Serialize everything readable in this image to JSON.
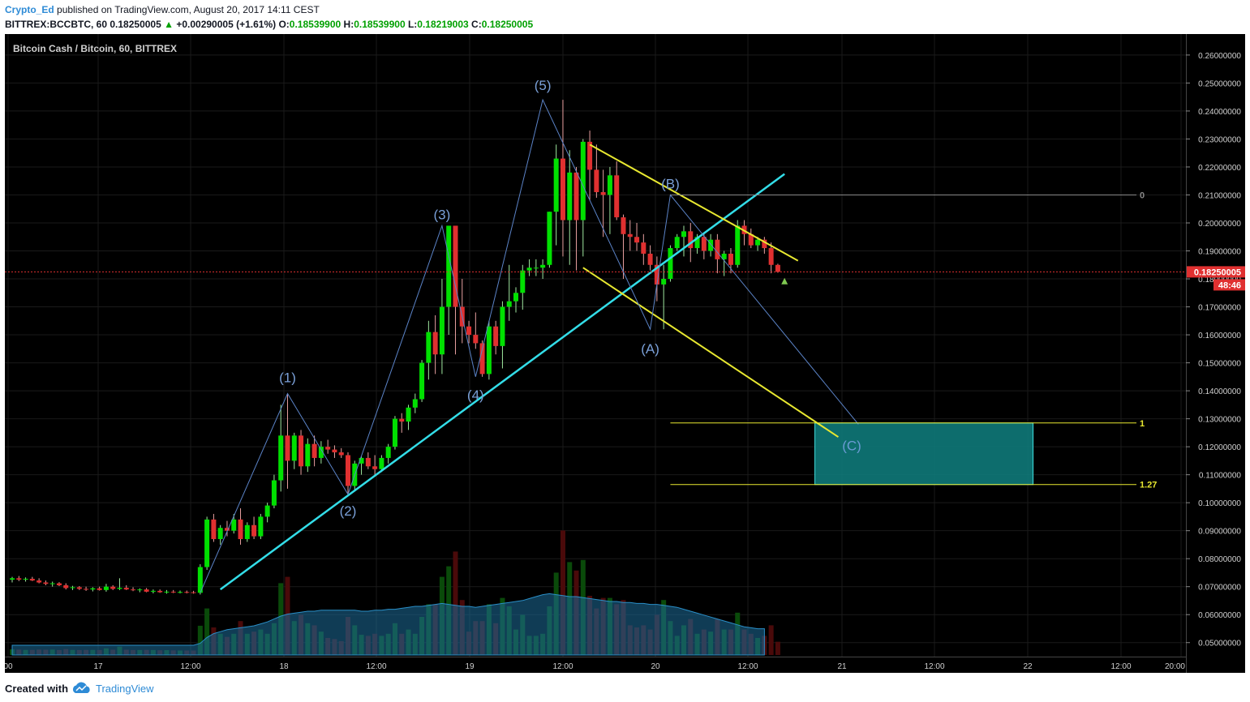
{
  "header": {
    "author": "Crypto_Ed",
    "published_text": "published on TradingView.com, August 20, 2017 14:11 CEST",
    "symbol_line": "BITTREX:BCCBTC, 60",
    "last": "0.18250005",
    "change": "+0.00290005 (+1.61%)",
    "open_label": "O:",
    "open": "0.18539900",
    "high_label": "H:",
    "high": "0.18539900",
    "low_label": "L:",
    "low": "0.18219003",
    "close_label": "C:",
    "close": "0.18250005"
  },
  "footer": {
    "created_with": "Created with",
    "brand": "TradingView"
  },
  "colors": {
    "background": "#000000",
    "grid": "#1a1a1a",
    "up": "#00e000",
    "down": "#e03030",
    "trendline": "#33dde8",
    "channel": "#e8e830",
    "wave": "#5b83c7",
    "target_box": "#0f8080"
  },
  "chart_data": {
    "type": "candlestick",
    "title": "Bitcoin Cash / Bitcoin, 60, BITTREX",
    "ylim": [
      0.045,
      0.2675
    ],
    "y_ticks": [
      "0.26000000",
      "0.25000000",
      "0.24000000",
      "0.23000000",
      "0.22000000",
      "0.21000000",
      "0.20000000",
      "0.19000000",
      "0.18000000",
      "0.17000000",
      "0.16000000",
      "0.15000000",
      "0.14000000",
      "0.13000000",
      "0.12000000",
      "0.11000000",
      "0.10000000",
      "0.09000000",
      "0.08000000",
      "0.07000000",
      "0.06000000",
      "0.05000000"
    ],
    "x_ticks": [
      "00",
      "17",
      "12:00",
      "18",
      "12:00",
      "19",
      "12:00",
      "20",
      "12:00",
      "21",
      "12:00",
      "22",
      "12:00",
      "20:00"
    ],
    "current_price": "0.18250005",
    "countdown": "48:46",
    "candles": [
      [
        0.0725,
        0.0735,
        0.0715,
        0.073
      ],
      [
        0.073,
        0.0738,
        0.072,
        0.0725
      ],
      [
        0.0725,
        0.0733,
        0.0718,
        0.0728
      ],
      [
        0.0728,
        0.0735,
        0.072,
        0.0722
      ],
      [
        0.0722,
        0.073,
        0.0712,
        0.0715
      ],
      [
        0.0715,
        0.0722,
        0.0705,
        0.071
      ],
      [
        0.071,
        0.0718,
        0.07,
        0.0712
      ],
      [
        0.0712,
        0.0716,
        0.0702,
        0.0705
      ],
      [
        0.0705,
        0.0712,
        0.069,
        0.0695
      ],
      [
        0.0695,
        0.0703,
        0.0688,
        0.0698
      ],
      [
        0.0698,
        0.0702,
        0.0688,
        0.0692
      ],
      [
        0.0692,
        0.07,
        0.0685,
        0.069
      ],
      [
        0.069,
        0.0698,
        0.0683,
        0.0694
      ],
      [
        0.0694,
        0.07,
        0.0686,
        0.0688
      ],
      [
        0.0688,
        0.071,
        0.0682,
        0.07
      ],
      [
        0.07,
        0.0705,
        0.0688,
        0.0692
      ],
      [
        0.0692,
        0.073,
        0.0688,
        0.0696
      ],
      [
        0.0696,
        0.0705,
        0.0688,
        0.069
      ],
      [
        0.069,
        0.0698,
        0.0684,
        0.0688
      ],
      [
        0.0688,
        0.0694,
        0.068,
        0.069
      ],
      [
        0.069,
        0.0695,
        0.068,
        0.0682
      ],
      [
        0.0682,
        0.069,
        0.0676,
        0.0685
      ],
      [
        0.0685,
        0.069,
        0.0678,
        0.068
      ],
      [
        0.068,
        0.0688,
        0.0675,
        0.0682
      ],
      [
        0.0682,
        0.0688,
        0.0677,
        0.068
      ],
      [
        0.068,
        0.0686,
        0.0676,
        0.0681
      ],
      [
        0.0681,
        0.0686,
        0.0676,
        0.068
      ],
      [
        0.068,
        0.0685,
        0.0675,
        0.0678
      ],
      [
        0.0678,
        0.078,
        0.0672,
        0.077
      ],
      [
        0.077,
        0.095,
        0.076,
        0.094
      ],
      [
        0.094,
        0.096,
        0.086,
        0.087
      ],
      [
        0.087,
        0.092,
        0.085,
        0.091
      ],
      [
        0.091,
        0.0935,
        0.088,
        0.09
      ],
      [
        0.09,
        0.096,
        0.089,
        0.094
      ],
      [
        0.094,
        0.098,
        0.085,
        0.087
      ],
      [
        0.087,
        0.093,
        0.086,
        0.092
      ],
      [
        0.092,
        0.095,
        0.087,
        0.088
      ],
      [
        0.088,
        0.096,
        0.087,
        0.095
      ],
      [
        0.095,
        0.1,
        0.093,
        0.099
      ],
      [
        0.099,
        0.11,
        0.098,
        0.108
      ],
      [
        0.108,
        0.135,
        0.104,
        0.124
      ],
      [
        0.124,
        0.139,
        0.105,
        0.115
      ],
      [
        0.115,
        0.125,
        0.112,
        0.124
      ],
      [
        0.124,
        0.126,
        0.11,
        0.113
      ],
      [
        0.113,
        0.123,
        0.111,
        0.121
      ],
      [
        0.121,
        0.124,
        0.113,
        0.116
      ],
      [
        0.116,
        0.122,
        0.114,
        0.12
      ],
      [
        0.12,
        0.1225,
        0.1175,
        0.119
      ],
      [
        0.119,
        0.1205,
        0.116,
        0.118
      ],
      [
        0.118,
        0.1195,
        0.116,
        0.117
      ],
      [
        0.117,
        0.118,
        0.103,
        0.106
      ],
      [
        0.106,
        0.115,
        0.104,
        0.114
      ],
      [
        0.114,
        0.1165,
        0.11,
        0.116
      ],
      [
        0.116,
        0.118,
        0.112,
        0.113
      ],
      [
        0.113,
        0.117,
        0.11,
        0.112
      ],
      [
        0.112,
        0.117,
        0.111,
        0.116
      ],
      [
        0.116,
        0.121,
        0.114,
        0.12
      ],
      [
        0.12,
        0.131,
        0.119,
        0.13
      ],
      [
        0.13,
        0.132,
        0.125,
        0.129
      ],
      [
        0.129,
        0.135,
        0.126,
        0.134
      ],
      [
        0.134,
        0.139,
        0.132,
        0.137
      ],
      [
        0.137,
        0.151,
        0.136,
        0.15
      ],
      [
        0.15,
        0.165,
        0.144,
        0.161
      ],
      [
        0.161,
        0.167,
        0.146,
        0.153
      ],
      [
        0.153,
        0.18,
        0.146,
        0.17
      ],
      [
        0.17,
        0.199,
        0.16,
        0.199
      ],
      [
        0.199,
        0.199,
        0.153,
        0.17
      ],
      [
        0.17,
        0.18,
        0.157,
        0.163
      ],
      [
        0.163,
        0.165,
        0.157,
        0.16
      ],
      [
        0.16,
        0.168,
        0.155,
        0.157
      ],
      [
        0.157,
        0.158,
        0.145,
        0.146
      ],
      [
        0.146,
        0.165,
        0.144,
        0.163
      ],
      [
        0.163,
        0.165,
        0.153,
        0.156
      ],
      [
        0.156,
        0.172,
        0.148,
        0.17
      ],
      [
        0.17,
        0.185,
        0.165,
        0.172
      ],
      [
        0.172,
        0.177,
        0.168,
        0.175
      ],
      [
        0.175,
        0.185,
        0.169,
        0.183
      ],
      [
        0.183,
        0.187,
        0.181,
        0.184
      ],
      [
        0.184,
        0.187,
        0.181,
        0.184
      ],
      [
        0.184,
        0.187,
        0.18,
        0.185
      ],
      [
        0.185,
        0.204,
        0.184,
        0.204
      ],
      [
        0.204,
        0.228,
        0.192,
        0.223
      ],
      [
        0.223,
        0.244,
        0.188,
        0.201
      ],
      [
        0.201,
        0.226,
        0.185,
        0.218
      ],
      [
        0.218,
        0.22,
        0.183,
        0.201
      ],
      [
        0.201,
        0.23,
        0.188,
        0.229
      ],
      [
        0.229,
        0.233,
        0.208,
        0.219
      ],
      [
        0.219,
        0.228,
        0.209,
        0.211
      ],
      [
        0.211,
        0.219,
        0.195,
        0.21
      ],
      [
        0.21,
        0.22,
        0.196,
        0.217
      ],
      [
        0.217,
        0.222,
        0.201,
        0.202
      ],
      [
        0.202,
        0.203,
        0.18,
        0.196
      ],
      [
        0.196,
        0.201,
        0.19,
        0.195
      ],
      [
        0.195,
        0.2,
        0.19,
        0.193
      ],
      [
        0.193,
        0.196,
        0.185,
        0.189
      ],
      [
        0.189,
        0.192,
        0.183,
        0.185
      ],
      [
        0.185,
        0.188,
        0.172,
        0.178
      ],
      [
        0.178,
        0.185,
        0.162,
        0.18
      ],
      [
        0.18,
        0.192,
        0.179,
        0.191
      ],
      [
        0.191,
        0.196,
        0.19,
        0.195
      ],
      [
        0.195,
        0.199,
        0.188,
        0.197
      ],
      [
        0.197,
        0.2,
        0.186,
        0.191
      ],
      [
        0.191,
        0.196,
        0.189,
        0.195
      ],
      [
        0.195,
        0.196,
        0.187,
        0.19
      ],
      [
        0.19,
        0.196,
        0.188,
        0.194
      ],
      [
        0.194,
        0.196,
        0.182,
        0.187
      ],
      [
        0.187,
        0.19,
        0.181,
        0.189
      ],
      [
        0.189,
        0.191,
        0.182,
        0.185
      ],
      [
        0.185,
        0.201,
        0.184,
        0.199
      ],
      [
        0.199,
        0.201,
        0.192,
        0.196
      ],
      [
        0.196,
        0.198,
        0.191,
        0.192
      ],
      [
        0.192,
        0.195,
        0.19,
        0.194
      ],
      [
        0.194,
        0.195,
        0.189,
        0.191
      ],
      [
        0.191,
        0.193,
        0.182,
        0.185
      ],
      [
        0.185,
        0.1854,
        0.1822,
        0.1825
      ]
    ],
    "volume_avg": [
      0.1,
      0.1,
      0.1,
      0.1,
      0.1,
      0.1,
      0.1,
      0.1,
      0.1,
      0.1,
      0.1,
      0.1,
      0.1,
      0.1,
      0.1,
      0.1,
      0.1,
      0.1,
      0.1,
      0.1,
      0.1,
      0.1,
      0.1,
      0.1,
      0.1,
      0.1,
      0.1,
      0.1,
      0.12,
      0.18,
      0.22,
      0.24,
      0.26,
      0.27,
      0.28,
      0.29,
      0.3,
      0.32,
      0.34,
      0.37,
      0.4,
      0.42,
      0.43,
      0.44,
      0.45,
      0.45,
      0.46,
      0.46,
      0.46,
      0.46,
      0.46,
      0.46,
      0.45,
      0.45,
      0.46,
      0.46,
      0.47,
      0.47,
      0.48,
      0.49,
      0.5,
      0.5,
      0.51,
      0.52,
      0.53,
      0.52,
      0.51,
      0.5,
      0.5,
      0.49,
      0.5,
      0.51,
      0.52,
      0.53,
      0.54,
      0.55,
      0.56,
      0.58,
      0.6,
      0.62,
      0.63,
      0.62,
      0.61,
      0.6,
      0.6,
      0.59,
      0.58,
      0.57,
      0.56,
      0.55,
      0.55,
      0.54,
      0.54,
      0.53,
      0.53,
      0.52,
      0.52,
      0.51,
      0.5,
      0.49,
      0.47,
      0.45,
      0.43,
      0.41,
      0.39,
      0.37,
      0.35,
      0.33,
      0.31,
      0.29,
      0.28,
      0.27,
      0.27
    ],
    "drawings": {
      "wave_labels": [
        {
          "text": "(1)",
          "idx": 41,
          "price": 0.139
        },
        {
          "text": "(2)",
          "idx": 50,
          "price": 0.103
        },
        {
          "text": "(3)",
          "idx": 64,
          "price": 0.199
        },
        {
          "text": "(4)",
          "idx": 69,
          "price": 0.145
        },
        {
          "text": "(5)",
          "idx": 79,
          "price": 0.244
        },
        {
          "text": "(A)",
          "idx": 95,
          "price": 0.162
        },
        {
          "text": "(B)",
          "idx": 98,
          "price": 0.21
        },
        {
          "text": "(C)",
          "idx": 125,
          "price": 0.128
        }
      ],
      "fib_levels": [
        {
          "label": "0",
          "price": 0.21
        },
        {
          "label": "1",
          "price": 0.1285
        },
        {
          "label": "1.27",
          "price": 0.1065
        }
      ],
      "target_zone": {
        "from_idx": 120,
        "to_idx": 152,
        "top": 0.1285,
        "bottom": 0.1065
      }
    }
  }
}
